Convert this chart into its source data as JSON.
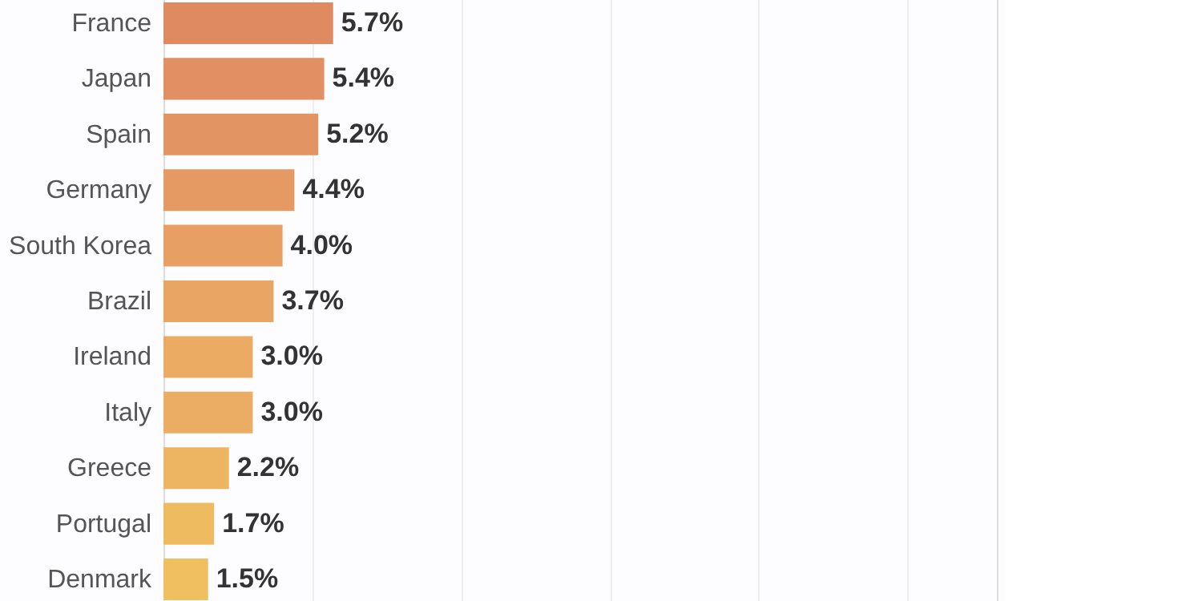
{
  "chart_data": {
    "type": "bar",
    "orientation": "horizontal",
    "categories": [
      "France",
      "Japan",
      "Spain",
      "Germany",
      "South Korea",
      "Brazil",
      "Ireland",
      "Italy",
      "Greece",
      "Portugal",
      "Denmark"
    ],
    "values": [
      5.7,
      5.4,
      5.2,
      4.4,
      4.0,
      3.7,
      3.0,
      3.0,
      2.2,
      1.7,
      1.5
    ],
    "colors": [
      "#e08a62",
      "#e18f63",
      "#e39463",
      "#e59a63",
      "#e79f64",
      "#e9a564",
      "#ebab63",
      "#ebac63",
      "#edb462",
      "#efbb61",
      "#f0c060"
    ],
    "value_labels": [
      "5.7%",
      "5.4%",
      "5.2%",
      "4.4%",
      "4.0%",
      "3.7%",
      "3.0%",
      "3.0%",
      "2.2%",
      "1.7%",
      "1.5%"
    ],
    "xlim": [
      0,
      28
    ],
    "xticks": [
      {
        "value": 0,
        "label": null
      },
      {
        "value": 5,
        "label": null
      },
      {
        "value": 10,
        "label": null
      },
      {
        "value": 15,
        "label": null
      },
      {
        "value": 20,
        "label": null
      },
      {
        "value": 25,
        "label": null
      }
    ],
    "grid": "x",
    "tick_labels": "y"
  }
}
